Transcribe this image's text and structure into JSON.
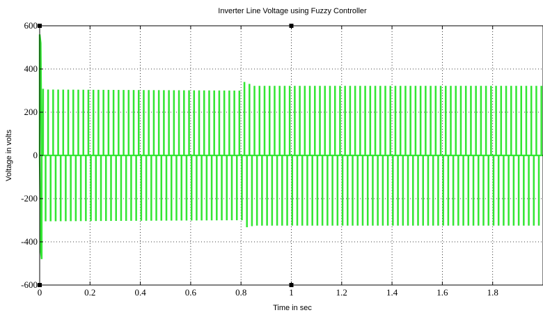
{
  "chart_data": {
    "type": "line",
    "title": "Inverter Line Voltage using Fuzzy Controller",
    "xlabel": "Time in sec",
    "ylabel": "Voltage in volts",
    "xlim": [
      0,
      2
    ],
    "ylim": [
      -600,
      600
    ],
    "xticks": [
      "0",
      "0.2",
      "0.4",
      "0.6",
      "0.8",
      "1",
      "1.2",
      "1.4",
      "1.6",
      "1.8"
    ],
    "yticks": [
      "600",
      "400",
      "200",
      "0",
      "-200",
      "-400",
      "-600"
    ],
    "grid": true,
    "colors": {
      "series": "#33e633",
      "axes": "#000000",
      "grid": "#000000"
    },
    "series": [
      {
        "description": "PWM pulsed line voltage",
        "x": [
          0,
          0.005,
          0.02,
          0.8,
          0.81,
          0.85,
          2.0
        ],
        "pulse_amplitude": [
          580,
          310,
          305,
          300,
          340,
          322,
          322
        ],
        "negative_amplitude": [
          -490,
          -370,
          -305,
          -300,
          -335,
          -325,
          -325
        ],
        "pulse_period_sec": 0.02
      }
    ]
  }
}
